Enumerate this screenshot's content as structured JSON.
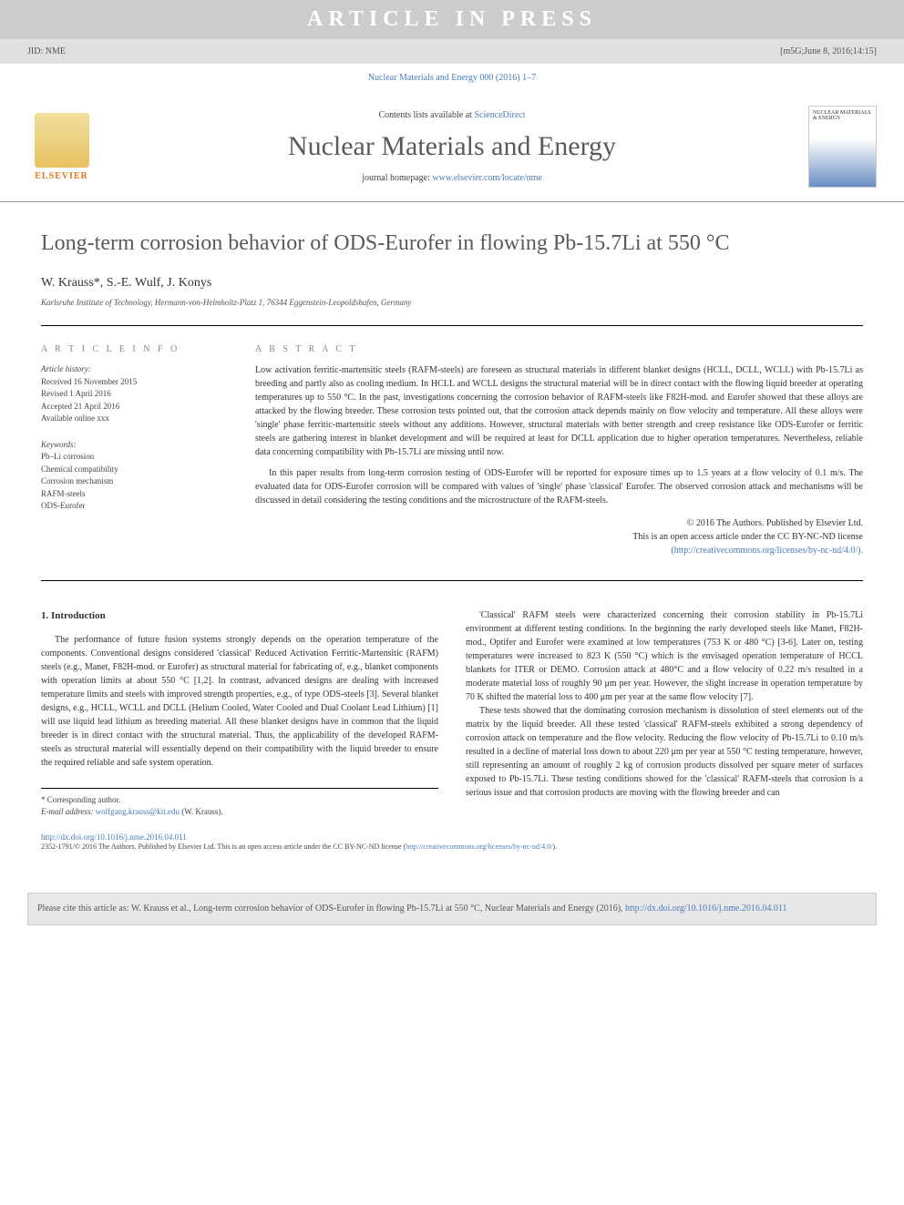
{
  "header": {
    "jid": "JID: NME",
    "artinfo": "[m5G;June 8, 2016;14:15]",
    "aip": "ARTICLE IN PRESS",
    "journal_ref": "Nuclear Materials and Energy 000 (2016) 1–7",
    "sciencedirect": "Contents lists available at ",
    "sciencedirect_link": "ScienceDirect",
    "journal_title": "Nuclear Materials and Energy",
    "homepage_prefix": "journal homepage: ",
    "homepage_url": "www.elsevier.com/locate/nme",
    "elsevier": "ELSEVIER",
    "cover_text": "NUCLEAR MATERIALS & ENERGY"
  },
  "article": {
    "title": "Long-term corrosion behavior of ODS-Eurofer in flowing Pb-15.7Li at 550 °C",
    "authors": "W. Krauss*, S.-E. Wulf, J. Konys",
    "affiliation": "Karlsruhe Institute of Technology, Hermann-von-Helmholtz-Platz 1, 76344 Eggenstein-Leopoldshafen, Germany"
  },
  "info": {
    "section_label": "A R T I C L E   I N F O",
    "history_label": "Article history:",
    "received": "Received 16 November 2015",
    "revised": "Revised 1 April 2016",
    "accepted": "Accepted 21 April 2016",
    "available": "Available online xxx",
    "keywords_label": "Keywords:",
    "kw1": "Pb–Li corrosion",
    "kw2": "Chemical compatibility",
    "kw3": "Corrosion mechanism",
    "kw4": "RAFM-steels",
    "kw5": "ODS-Eurofer"
  },
  "abstract": {
    "section_label": "A B S T R A C T",
    "p1": "Low activation ferritic-martensitic steels (RAFM-steels) are foreseen as structural materials in different blanket designs (HCLL, DCLL, WCLL) with Pb-15.7Li as breeding and partly also as cooling medium. In HCLL and WCLL designs the structural material will be in direct contact with the flowing liquid breeder at operating temperatures up to 550 °C. In the past, investigations concerning the corrosion behavior of RAFM-steels like F82H-mod. and Eurofer showed that these alloys are attacked by the flowing breeder. These corrosion tests pointed out, that the corrosion attack depends mainly on flow velocity and temperature. All these alloys were 'single' phase ferritic-martensitic steels without any additions. However, structural materials with better strength and creep resistance like ODS-Eurofer or ferritic steels are gathering interest in blanket development and will be required at least for DCLL application due to higher operation temperatures. Nevertheless, reliable data concerning compatibility with Pb-15.7Li are missing until now.",
    "p2": "In this paper results from long-term corrosion testing of ODS-Eurofer will be reported for exposure times up to 1.5 years at a flow velocity of 0.1 m/s. The evaluated data for ODS-Eurofer corrosion will be compared with values of 'single' phase 'classical' Eurofer. The observed corrosion attack and mechanisms will be discussed in detail considering the testing conditions and the microstructure of the RAFM-steels.",
    "copyright": "© 2016 The Authors. Published by Elsevier Ltd.",
    "license1": "This is an open access article under the CC BY-NC-ND license",
    "license_url": "(http://creativecommons.org/licenses/by-nc-nd/4.0/)."
  },
  "body": {
    "intro_heading": "1. Introduction",
    "left_p1": "The performance of future fusion systems strongly depends on the operation temperature of the components. Conventional designs considered 'classical' Reduced Activation Ferritic-Martensitic (RAFM) steels (e.g., Manet, F82H-mod. or Eurofer) as structural material for fabricating of, e.g., blanket components with operation limits at about 550 °C [1,2]. In contrast, advanced designs are dealing with increased temperature limits and steels with improved strength properties, e.g., of type ODS-steels [3]. Several blanket designs, e.g., HCLL, WCLL and DCLL (Helium Cooled, Water Cooled and Dual Coolant Lead Lithium) [1] will use liquid lead lithium as breeding material. All these blanket designs have in common that the liquid breeder is in direct contact with the structural material. Thus, the applicability of the developed RAFM-steels as structural material will essentially depend on their compatibility with the liquid breeder to ensure the required reliable and safe system operation.",
    "right_p1": "'Classical' RAFM steels were characterized concerning their corrosion stability in Pb-15.7Li environment at different testing conditions. In the beginning the early developed steels like Manet, F82H-mod., Optifer and Eurofer were examined at low temperatures (753 K or 480 °C) [3-6]. Later on, testing temperatures were increased to 823 K (550 °C) which is the envisaged operation temperature of HCCL blankets for ITER or DEMO. Corrosion attack at 480°C and a flow velocity of 0.22 m/s resulted in a moderate material loss of roughly 90 μm per year. However, the slight increase in operation temperature by 70 K shifted the material loss to 400 μm per year at the same flow velocity [7].",
    "right_p2": "These tests showed that the dominating corrosion mechanism is dissolution of steel elements out of the matrix by the liquid breeder. All these tested 'classical' RAFM-steels exhibited a strong dependency of corrosion attack on temperature and the flow velocity. Reducing the flow velocity of Pb-15.7Li to 0.10 m/s resulted in a decline of material loss down to about 220 μm per year at 550 °C testing temperature, however, still representing an amount of roughly 2 kg of corrosion products dissolved per square meter of surfaces exposed to Pb-15.7Li. These testing conditions showed for the 'classical' RAFM-steels that corrosion is a serious issue and that corrosion products are moving with the flowing breeder and can"
  },
  "footer": {
    "corresponding": "* Corresponding author.",
    "email_label": "E-mail address: ",
    "email": "wolfgang.krauss@kit.edu",
    "email_name": " (W. Krauss).",
    "doi": "http://dx.doi.org/10.1016/j.nme.2016.04.011",
    "copyright": "2352-1791/© 2016 The Authors. Published by Elsevier Ltd. This is an open access article under the CC BY-NC-ND license (",
    "copyright_url": "http://creativecommons.org/licenses/by-nc-nd/4.0/",
    "copyright_end": ").",
    "cite": "Please cite this article as: W. Krauss et al., Long-term corrosion behavior of ODS-Eurofer in flowing Pb-15.7Li at 550 °C, Nuclear Materials and Energy (2016), ",
    "cite_doi": "http://dx.doi.org/10.1016/j.nme.2016.04.011"
  },
  "colors": {
    "link": "#4a7db8",
    "elsevier_orange": "#e67817",
    "gray_text": "#5a5a5a",
    "light_gray_bg": "#e8e8e8"
  }
}
